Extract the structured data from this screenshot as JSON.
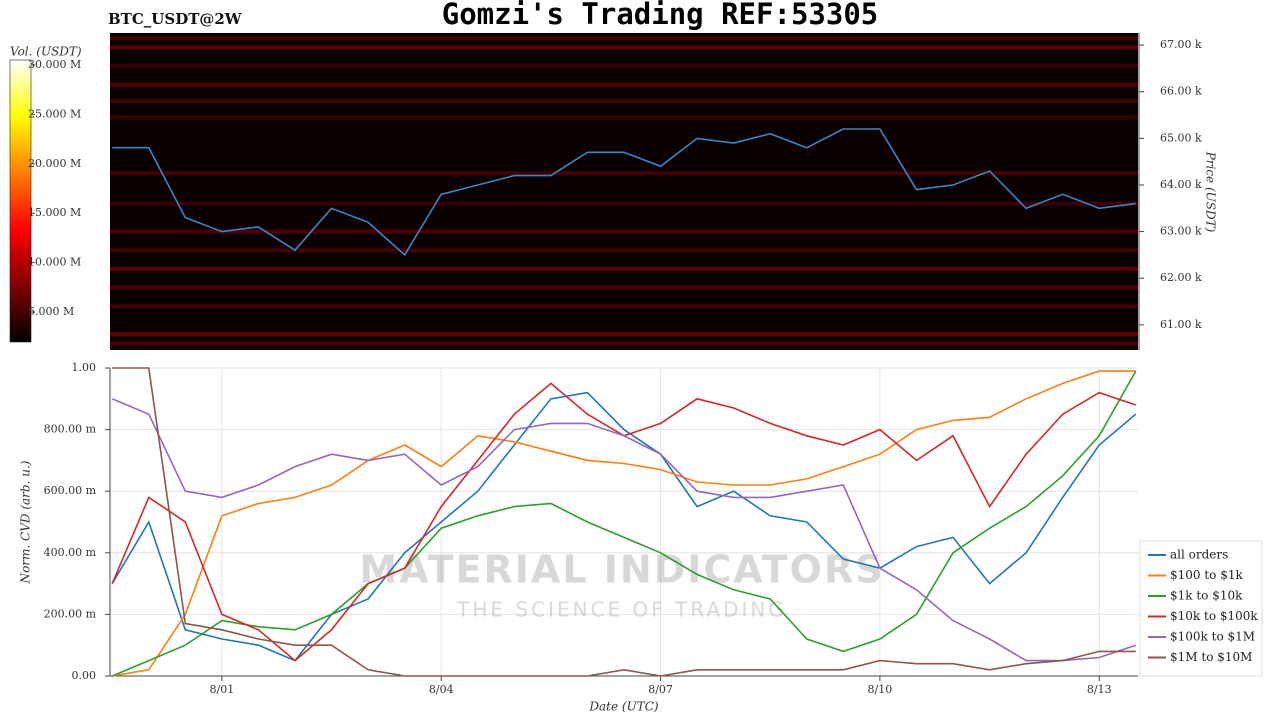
{
  "title": "Gomzi's Trading REF:53305",
  "watermark": {
    "line1": "MATERIAL INDICATORS",
    "line2": "THE SCIENCE OF TRADING"
  },
  "chart_data": [
    {
      "type": "heatmap",
      "title": "BTC_USDT@2W",
      "y_label": "Price (USDT)",
      "color_label": "Vol. (USDT)",
      "xlim": [
        -0.53,
        13.53
      ],
      "ylim": [
        60460,
        67260
      ],
      "yticks": [
        {
          "value": 61000,
          "label": "61.00 k"
        },
        {
          "value": 62000,
          "label": "62.00 k"
        },
        {
          "value": 63000,
          "label": "63.00 k"
        },
        {
          "value": 64000,
          "label": "64.00 k"
        },
        {
          "value": 65000,
          "label": "65.00 k"
        },
        {
          "value": 66000,
          "label": "66.00 k"
        },
        {
          "value": 67000,
          "label": "67.00 k"
        }
      ],
      "clim": [
        1970000,
        30500000
      ],
      "cticks": [
        {
          "value": 5000000,
          "label": "5.000 M"
        },
        {
          "value": 10000000,
          "label": "10.000 M"
        },
        {
          "value": 15000000,
          "label": "15.000 M"
        },
        {
          "value": 20000000,
          "label": "20.000 M"
        },
        {
          "value": 25000000,
          "label": "25.000 M"
        },
        {
          "value": 30000000,
          "label": "30.000 M"
        }
      ],
      "levels": [
        {
          "price": 67150,
          "volume": 5000000
        },
        {
          "price": 66950,
          "volume": 6000000
        },
        {
          "price": 66550,
          "volume": 4500000
        },
        {
          "price": 66150,
          "volume": 5500000
        },
        {
          "price": 65800,
          "volume": 5000000
        },
        {
          "price": 65450,
          "volume": 4500000
        },
        {
          "price": 64250,
          "volume": 5000000
        },
        {
          "price": 63600,
          "volume": 4500000
        },
        {
          "price": 63000,
          "volume": 5500000
        },
        {
          "price": 62600,
          "volume": 5000000
        },
        {
          "price": 62200,
          "volume": 6000000
        },
        {
          "price": 61800,
          "volume": 5500000
        },
        {
          "price": 61400,
          "volume": 5000000
        },
        {
          "price": 60800,
          "volume": 6500000
        },
        {
          "price": 60600,
          "volume": 5500000
        }
      ],
      "x": [
        -0.5,
        0,
        0.5,
        1,
        1.5,
        2,
        2.5,
        3,
        3.5,
        4,
        4.5,
        5,
        5.5,
        6,
        6.5,
        7,
        7.5,
        8,
        8.5,
        9,
        9.5,
        10,
        10.5,
        11,
        11.5,
        12,
        12.5,
        13,
        13.5
      ],
      "values": [
        64800,
        64800,
        63300,
        63000,
        63100,
        62600,
        63500,
        63200,
        62500,
        63800,
        64000,
        64200,
        64200,
        64700,
        64700,
        64400,
        65000,
        64900,
        65100,
        64800,
        65200,
        65200,
        63900,
        64000,
        64300,
        63500,
        63800,
        63500,
        63600
      ],
      "color": "#3a86c8"
    },
    {
      "type": "line",
      "x_label": "Date (UTC)",
      "y_label": "Norm. CVD (arb. u.)",
      "xlim": [
        -0.53,
        13.53
      ],
      "xticks": [
        {
          "value": 1,
          "label": "8/01"
        },
        {
          "value": 4,
          "label": "8/04"
        },
        {
          "value": 7,
          "label": "8/07"
        },
        {
          "value": 10,
          "label": "8/10"
        },
        {
          "value": 13,
          "label": "8/13"
        }
      ],
      "ylim": [
        0,
        1
      ],
      "yticks": [
        {
          "value": 0,
          "label": "0.00"
        },
        {
          "value": 0.2,
          "label": "200.00 m"
        },
        {
          "value": 0.4,
          "label": "400.00 m"
        },
        {
          "value": 0.6,
          "label": "600.00 m"
        },
        {
          "value": 0.8,
          "label": "800.00 m"
        },
        {
          "value": 1,
          "label": "1.00"
        }
      ],
      "grid": true,
      "legend": "lower right",
      "x": [
        -0.5,
        0,
        0.5,
        1,
        1.5,
        2,
        2.5,
        3,
        3.5,
        4,
        4.5,
        5,
        5.5,
        6,
        6.5,
        7,
        7.5,
        8,
        8.5,
        9,
        9.5,
        10,
        10.5,
        11,
        11.5,
        12,
        12.5,
        13,
        13.5
      ],
      "series": [
        {
          "name": "all orders",
          "color": "#1f77b4",
          "values": [
            0.3,
            0.5,
            0.15,
            0.12,
            0.1,
            0.05,
            0.2,
            0.25,
            0.4,
            0.5,
            0.6,
            0.75,
            0.9,
            0.92,
            0.8,
            0.72,
            0.55,
            0.6,
            0.52,
            0.5,
            0.38,
            0.35,
            0.42,
            0.45,
            0.3,
            0.4,
            0.58,
            0.75,
            0.85
          ]
        },
        {
          "name": "$100 to $1k",
          "color": "#ff7f0e",
          "values": [
            0.0,
            0.02,
            0.2,
            0.52,
            0.56,
            0.58,
            0.62,
            0.7,
            0.75,
            0.68,
            0.78,
            0.76,
            0.73,
            0.7,
            0.69,
            0.67,
            0.63,
            0.62,
            0.62,
            0.64,
            0.68,
            0.72,
            0.8,
            0.83,
            0.84,
            0.9,
            0.95,
            0.99,
            0.99
          ]
        },
        {
          "name": "$1k to $10k",
          "color": "#2ca02c",
          "values": [
            0.0,
            0.05,
            0.1,
            0.18,
            0.16,
            0.15,
            0.2,
            0.3,
            0.35,
            0.48,
            0.52,
            0.55,
            0.56,
            0.5,
            0.45,
            0.4,
            0.33,
            0.28,
            0.25,
            0.12,
            0.08,
            0.12,
            0.2,
            0.4,
            0.48,
            0.55,
            0.65,
            0.78,
            0.99
          ]
        },
        {
          "name": "$10k to $100k",
          "color": "#d62728",
          "values": [
            0.3,
            0.58,
            0.5,
            0.2,
            0.15,
            0.05,
            0.15,
            0.3,
            0.35,
            0.55,
            0.7,
            0.85,
            0.95,
            0.85,
            0.78,
            0.82,
            0.9,
            0.87,
            0.82,
            0.78,
            0.75,
            0.8,
            0.7,
            0.78,
            0.55,
            0.72,
            0.85,
            0.92,
            0.88
          ]
        },
        {
          "name": "$100k to $1M",
          "color": "#9467bd",
          "values": [
            0.9,
            0.85,
            0.6,
            0.58,
            0.62,
            0.68,
            0.72,
            0.7,
            0.72,
            0.62,
            0.68,
            0.8,
            0.82,
            0.82,
            0.78,
            0.72,
            0.6,
            0.58,
            0.58,
            0.6,
            0.62,
            0.35,
            0.28,
            0.18,
            0.12,
            0.05,
            0.05,
            0.06,
            0.1
          ]
        },
        {
          "name": "$1M to $10M",
          "color": "#8c564b",
          "values": [
            1.0,
            1.0,
            0.17,
            0.15,
            0.12,
            0.1,
            0.1,
            0.02,
            0.0,
            0.0,
            0.0,
            0.0,
            0.0,
            0.0,
            0.02,
            0.0,
            0.02,
            0.02,
            0.02,
            0.02,
            0.02,
            0.05,
            0.04,
            0.04,
            0.02,
            0.04,
            0.05,
            0.08,
            0.08
          ]
        }
      ]
    }
  ]
}
